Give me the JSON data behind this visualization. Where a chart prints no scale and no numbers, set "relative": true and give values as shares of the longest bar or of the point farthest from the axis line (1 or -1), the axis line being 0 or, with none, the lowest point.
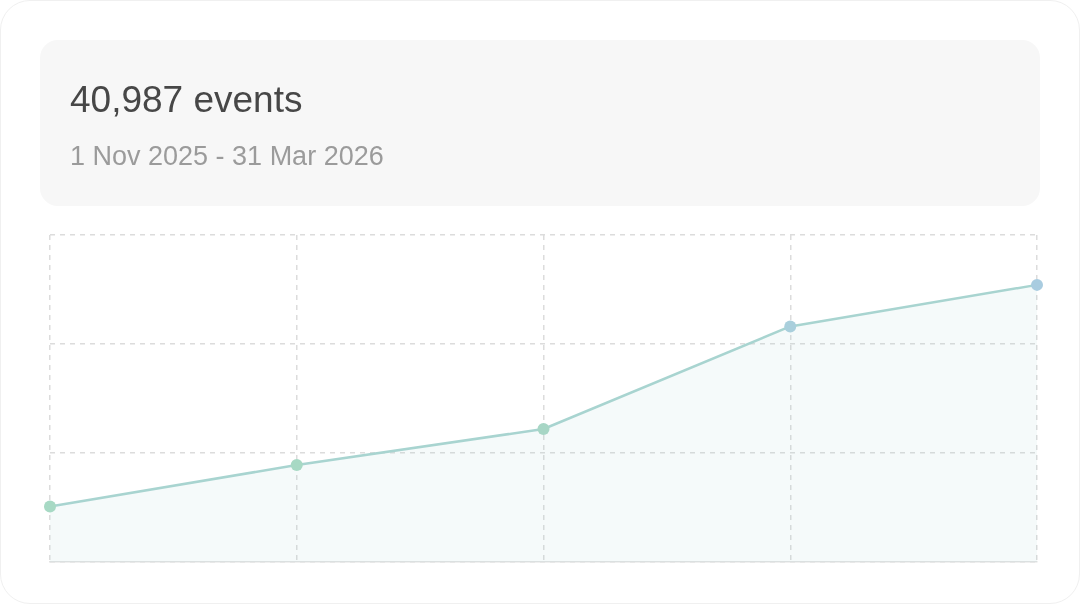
{
  "chart_data": {
    "type": "area",
    "title": "40,987 events",
    "subtitle": "1 Nov 2025 - 31 Mar 2026",
    "relative": true,
    "categories": [
      null,
      null,
      null,
      null,
      null
    ],
    "series": [
      {
        "color": "#a8d4d0",
        "colors": [
          "#a7d9c4",
          "#a7d9c4",
          "#a7d6c5",
          "#a9cfdc",
          "#a9cce0"
        ],
        "values": [
          0.2,
          0.35,
          0.48,
          0.85,
          1
        ]
      }
    ],
    "marker": "circle",
    "grid": true,
    "legend": false,
    "tick_labels": false
  }
}
